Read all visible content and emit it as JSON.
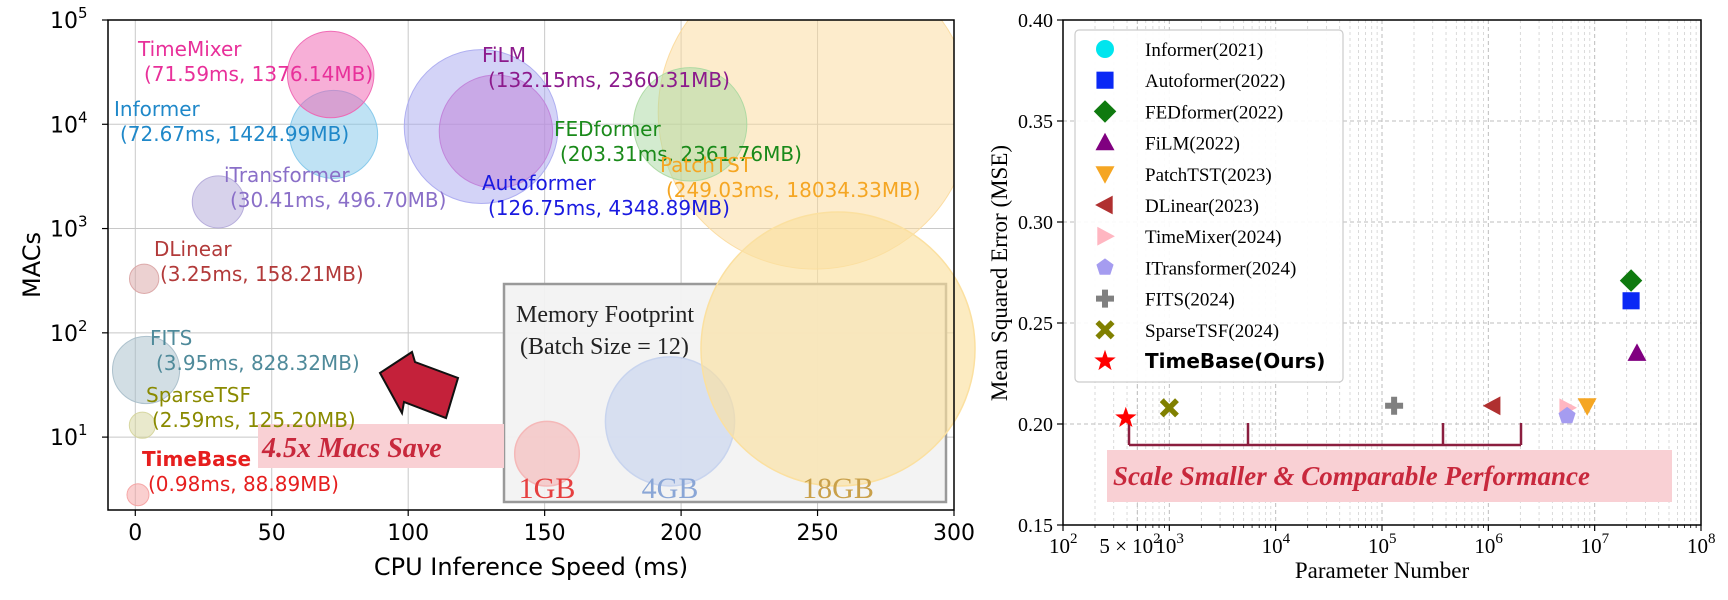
{
  "chart_data": [
    {
      "type": "scatter",
      "xlabel": "CPU Inference Speed (ms)",
      "ylabel": "MACs",
      "xlim": [
        -10,
        300
      ],
      "ylim": [
        2,
        100000
      ],
      "yscale": "log",
      "grid": true,
      "xticks": [
        "0",
        "50",
        "100",
        "150",
        "200",
        "250",
        "300"
      ],
      "yticks": [
        {
          "base": "10",
          "exp": "1",
          "value": 10
        },
        {
          "base": "10",
          "exp": "2",
          "value": 100
        },
        {
          "base": "10",
          "exp": "3",
          "value": 1000
        },
        {
          "base": "10",
          "exp": "4",
          "value": 10000
        },
        {
          "base": "10",
          "exp": "5",
          "value": 100000
        }
      ],
      "points": [
        {
          "name": "TimeMixer",
          "label": "(71.59ms, 1376.14MB)",
          "x": 71.59,
          "y": 30000,
          "memory_mb": 1376.14,
          "color": "#f060b0",
          "text_color": "#e8309a"
        },
        {
          "name": "Informer",
          "label": "(72.67ms, 1424.99MB)",
          "x": 72.67,
          "y": 8000,
          "memory_mb": 1424.99,
          "color": "#7fc6ea",
          "text_color": "#1f88c9"
        },
        {
          "name": "iTransformer",
          "label": "(30.41ms, 496.70MB)",
          "x": 30.41,
          "y": 1800,
          "memory_mb": 496.7,
          "color": "#b0a6d8",
          "text_color": "#8a6fc8"
        },
        {
          "name": "DLinear",
          "label": "(3.25ms, 158.21MB)",
          "x": 3.25,
          "y": 330,
          "memory_mb": 158.21,
          "color": "#d9a3a3",
          "text_color": "#b23a3a"
        },
        {
          "name": "FITS",
          "label": "(3.95ms, 828.32MB)",
          "x": 3.95,
          "y": 44,
          "memory_mb": 828.32,
          "color": "#a6bdc9",
          "text_color": "#4f8a9a"
        },
        {
          "name": "SparseTSF",
          "label": "(2.59ms, 125.20MB)",
          "x": 2.59,
          "y": 13,
          "memory_mb": 125.2,
          "color": "#d4d49a",
          "text_color": "#8a8a00"
        },
        {
          "name": "TimeBase",
          "label": "(0.98ms, 88.89MB)",
          "x": 0.98,
          "y": 2.8,
          "memory_mb": 88.89,
          "color": "#f5a0a0",
          "text_color": "#e61e1e"
        },
        {
          "name": "FiLM",
          "label": "(132.15ms, 2360.31MB)",
          "x": 132.15,
          "y": 8500,
          "memory_mb": 2360.31,
          "color": "#c080d8",
          "text_color": "#8c1a8c"
        },
        {
          "name": "Autoformer",
          "label": "(126.75ms, 4348.89MB)",
          "x": 126.75,
          "y": 9500,
          "memory_mb": 4348.89,
          "color": "#a8a8f0",
          "text_color": "#1a1ae0"
        },
        {
          "name": "FEDformer",
          "label": "(203.31ms, 2361.76MB)",
          "x": 203.31,
          "y": 10000,
          "memory_mb": 2361.76,
          "color": "#a8d8a0",
          "text_color": "#1a8a1a"
        },
        {
          "name": "PatchTST",
          "label": "(249.03ms, 18034.33MB)",
          "x": 249.03,
          "y": 13000,
          "memory_mb": 18034.33,
          "color": "#fbd99a",
          "text_color": "#f5a623"
        }
      ],
      "legend": {
        "title_line1": "Memory Footprint",
        "title_line2": "(Batch Size = 12)",
        "items": [
          {
            "label": "1GB",
            "memory_mb": 1024,
            "color": "#f5b8b8",
            "text_color": "#e64040"
          },
          {
            "label": "4GB",
            "memory_mb": 4096,
            "color": "#c8d4ee",
            "text_color": "#8aa6d6"
          },
          {
            "label": "18GB",
            "memory_mb": 18432,
            "color": "#fbe0a0",
            "text_color": "#c9a04a"
          }
        ]
      },
      "annotation": "4.5x Macs Save"
    },
    {
      "type": "scatter",
      "xlabel": "Parameter Number",
      "ylabel": "Mean Squared Error (MSE)",
      "xscale": "log",
      "xlim": [
        100,
        100000000
      ],
      "ylim": [
        0.15,
        0.4
      ],
      "grid": true,
      "xticks": [
        {
          "base": "10",
          "exp": "2",
          "value": 100
        },
        {
          "base": "5 × 10",
          "exp": "2",
          "value": 500
        },
        {
          "base": "10",
          "exp": "3",
          "value": 1000
        },
        {
          "base": "10",
          "exp": "4",
          "value": 10000
        },
        {
          "base": "10",
          "exp": "5",
          "value": 100000
        },
        {
          "base": "10",
          "exp": "6",
          "value": 1000000
        },
        {
          "base": "10",
          "exp": "7",
          "value": 10000000
        },
        {
          "base": "10",
          "exp": "8",
          "value": 100000000
        }
      ],
      "yticks": [
        "0.15",
        "0.20",
        "0.25",
        "0.30",
        "0.35",
        "0.40"
      ],
      "legend_placement": "top-left",
      "series": [
        {
          "name": "Informer(2021)",
          "marker": "circle",
          "color": "#00e5ee",
          "points": []
        },
        {
          "name": "Autoformer(2022)",
          "marker": "square",
          "color": "#0a28f5",
          "points": [
            {
              "x": 22000000,
              "y": 0.261
            }
          ]
        },
        {
          "name": "FEDformer(2022)",
          "marker": "diamond",
          "color": "#0f7a0f",
          "points": [
            {
              "x": 22000000,
              "y": 0.271
            }
          ]
        },
        {
          "name": "FiLM(2022)",
          "marker": "triangle-up",
          "color": "#800080",
          "points": [
            {
              "x": 25000000,
              "y": 0.235
            }
          ]
        },
        {
          "name": "PatchTST(2023)",
          "marker": "triangle-down",
          "color": "#f5a623",
          "points": [
            {
              "x": 8500000,
              "y": 0.209
            }
          ]
        },
        {
          "name": "DLinear(2023)",
          "marker": "triangle-left",
          "color": "#b03030",
          "points": [
            {
              "x": 1100000,
              "y": 0.209
            }
          ]
        },
        {
          "name": "TimeMixer(2024)",
          "marker": "triangle-right",
          "color": "#ffb6c1",
          "points": [
            {
              "x": 5500000,
              "y": 0.208
            }
          ]
        },
        {
          "name": "ITransformer(2024)",
          "marker": "pentagon",
          "color": "#a59cf0",
          "points": [
            {
              "x": 5500000,
              "y": 0.204
            }
          ]
        },
        {
          "name": "FITS(2024)",
          "marker": "plus",
          "color": "#808080",
          "points": [
            {
              "x": 130000,
              "y": 0.209
            }
          ]
        },
        {
          "name": "SparseTSF(2024)",
          "marker": "x",
          "color": "#808000",
          "points": [
            {
              "x": 1000,
              "y": 0.208
            }
          ]
        },
        {
          "name": "TimeBase(Ours)",
          "marker": "star",
          "color": "#ff0000",
          "bold": true,
          "points": [
            {
              "x": 390,
              "y": 0.203
            }
          ]
        }
      ],
      "annotation": "Scale Smaller & Comparable Performance"
    }
  ]
}
